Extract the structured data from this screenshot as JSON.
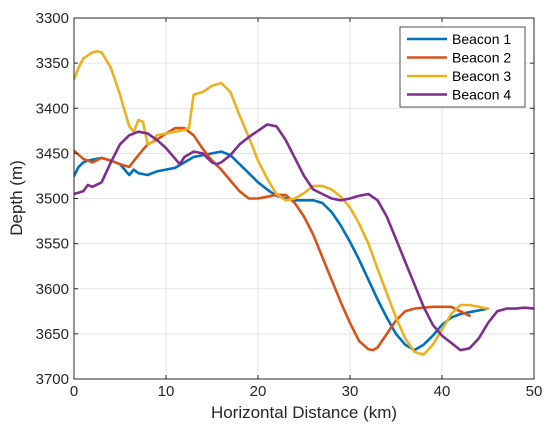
{
  "chart_data": {
    "type": "line",
    "title": "",
    "xlabel": "Horizontal Distance (km)",
    "ylabel": "Depth (m)",
    "xlim": [
      0,
      50
    ],
    "ylim": [
      3300,
      3700
    ],
    "y_reversed": true,
    "grid": true,
    "legend_position": "top-right",
    "x_ticks": [
      "0",
      "10",
      "20",
      "30",
      "40",
      "50"
    ],
    "y_ticks": [
      "3300",
      "3350",
      "3400",
      "3450",
      "3500",
      "3550",
      "3600",
      "3650",
      "3700"
    ],
    "series": [
      {
        "name": "Beacon 1",
        "color": "#0072BD",
        "x": [
          0,
          0.5,
          1,
          1.5,
          2,
          3,
          4,
          5,
          5.5,
          6,
          6.5,
          7,
          8,
          9,
          10,
          11,
          12,
          13,
          14,
          15,
          16,
          17,
          18,
          19,
          20,
          21,
          22,
          23,
          24,
          25,
          26,
          27,
          28,
          29,
          30,
          31,
          32,
          33,
          34,
          35,
          36,
          37,
          37.5,
          38,
          39,
          40,
          41,
          42,
          43,
          44,
          45
        ],
        "y": [
          3475,
          3465,
          3460,
          3458,
          3457,
          3455,
          3458,
          3462,
          3468,
          3474,
          3468,
          3472,
          3474,
          3470,
          3468,
          3466,
          3460,
          3454,
          3452,
          3450,
          3448,
          3452,
          3462,
          3472,
          3482,
          3490,
          3497,
          3500,
          3502,
          3502,
          3502,
          3505,
          3515,
          3530,
          3548,
          3568,
          3590,
          3612,
          3632,
          3650,
          3662,
          3668,
          3665,
          3662,
          3652,
          3640,
          3632,
          3628,
          3626,
          3624,
          3622
        ]
      },
      {
        "name": "Beacon 2",
        "color": "#D95319",
        "x": [
          0,
          1,
          2,
          3,
          4,
          5,
          6,
          7,
          8,
          9,
          10,
          11,
          12,
          13,
          14,
          15,
          16,
          17,
          18,
          19,
          20,
          21,
          22,
          23,
          24,
          25,
          26,
          27,
          28,
          29,
          30,
          31,
          32,
          32.5,
          33,
          34,
          35,
          36,
          37,
          38,
          39,
          40,
          41,
          42,
          43
        ],
        "y": [
          3447,
          3456,
          3460,
          3455,
          3458,
          3462,
          3465,
          3452,
          3440,
          3435,
          3428,
          3422,
          3422,
          3430,
          3445,
          3458,
          3468,
          3480,
          3492,
          3500,
          3500,
          3498,
          3496,
          3496,
          3505,
          3520,
          3540,
          3565,
          3590,
          3615,
          3638,
          3658,
          3667,
          3668,
          3665,
          3650,
          3635,
          3625,
          3622,
          3621,
          3620,
          3620,
          3620,
          3625,
          3630
        ]
      },
      {
        "name": "Beacon 3",
        "color": "#EDB120",
        "x": [
          0,
          0.5,
          1,
          2,
          2.5,
          3,
          4,
          5,
          6,
          6.5,
          7,
          7.5,
          8,
          8.5,
          9,
          10,
          11,
          12,
          12.5,
          13,
          14,
          15,
          16,
          17,
          18,
          19,
          20,
          21,
          22,
          23,
          24,
          25,
          26,
          27,
          28,
          29,
          30,
          31,
          32,
          33,
          34,
          35,
          36,
          37,
          38,
          39,
          40,
          41,
          42,
          43,
          44,
          45
        ],
        "y": [
          3368,
          3355,
          3345,
          3338,
          3337,
          3338,
          3355,
          3385,
          3420,
          3426,
          3413,
          3415,
          3440,
          3438,
          3430,
          3428,
          3426,
          3424,
          3422,
          3385,
          3382,
          3375,
          3372,
          3382,
          3408,
          3432,
          3458,
          3478,
          3495,
          3502,
          3500,
          3494,
          3486,
          3486,
          3490,
          3498,
          3510,
          3528,
          3550,
          3578,
          3605,
          3632,
          3655,
          3670,
          3673,
          3662,
          3645,
          3628,
          3618,
          3618,
          3620,
          3622
        ]
      },
      {
        "name": "Beacon 4",
        "color": "#7E2F8E",
        "x": [
          0,
          1,
          1.5,
          2,
          3,
          4,
          5,
          6,
          7,
          8,
          9,
          10,
          11,
          11.5,
          12,
          13,
          14,
          15,
          15.5,
          16,
          17,
          18,
          19,
          20,
          21,
          22,
          23,
          24,
          25,
          26,
          27,
          28,
          29,
          30,
          31,
          32,
          33,
          34,
          35,
          36,
          37,
          38,
          39,
          40,
          41,
          42,
          43,
          44,
          45,
          46,
          47,
          48,
          49,
          50
        ],
        "y": [
          3495,
          3492,
          3485,
          3487,
          3482,
          3460,
          3440,
          3430,
          3426,
          3428,
          3435,
          3444,
          3456,
          3462,
          3454,
          3448,
          3450,
          3460,
          3462,
          3460,
          3452,
          3440,
          3432,
          3425,
          3418,
          3420,
          3435,
          3455,
          3475,
          3490,
          3495,
          3500,
          3502,
          3500,
          3497,
          3495,
          3502,
          3520,
          3545,
          3570,
          3595,
          3620,
          3640,
          3652,
          3660,
          3668,
          3666,
          3655,
          3638,
          3625,
          3622,
          3622,
          3621,
          3622
        ]
      }
    ]
  }
}
